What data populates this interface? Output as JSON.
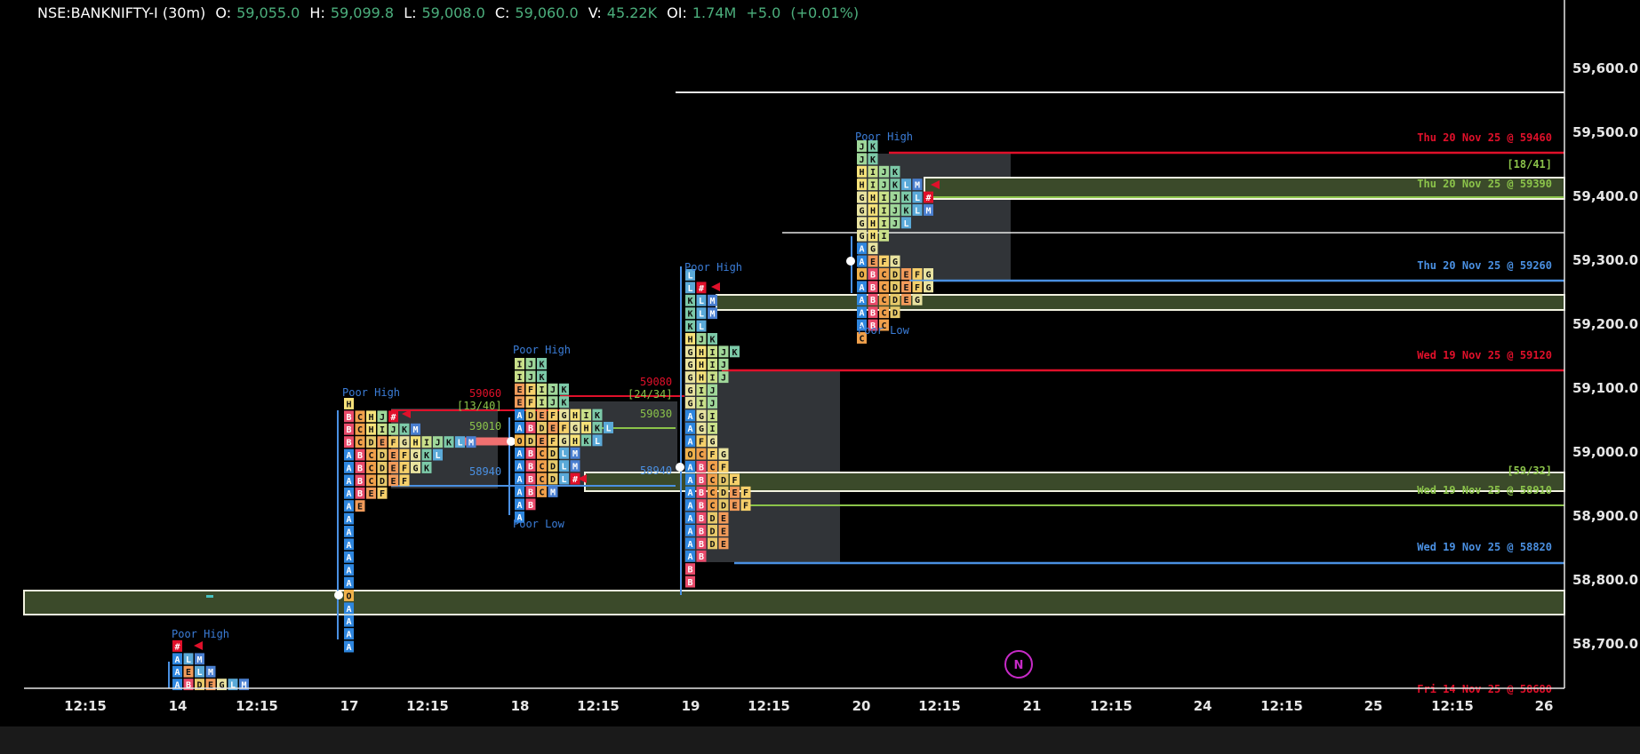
{
  "header": {
    "symbol": "NSE:BANKNIFTY-I (30m)",
    "open_label": "O:",
    "open": "59,055.0",
    "high_label": "H:",
    "high": "59,099.8",
    "low_label": "L:",
    "low": "59,008.0",
    "close_label": "C:",
    "close": "59,060.0",
    "volume_label": "V:",
    "volume": "45.22K",
    "oi_label": "OI:",
    "oi": "1.74M",
    "change": "+5.0",
    "change_pct": "(+0.01%)"
  },
  "colors": {
    "background": "#000000",
    "value_green": "#4caf7d",
    "poor_label": "#3b7dd8",
    "poc_red": "#e0102a",
    "vah_green": "#8bc34a",
    "val_blue": "#4a90e2",
    "band_fill": "#3b4a2a",
    "band_border": "#f2f2e0"
  },
  "price_axis": {
    "labels": [
      "59,600.0",
      "59,500.0",
      "59,400.0",
      "59,300.0",
      "59,200.0",
      "59,100.0",
      "59,000.0",
      "58,900.0",
      "58,800.0",
      "58,700.0"
    ]
  },
  "time_axis": {
    "labels": [
      "12:15",
      "14",
      "12:15",
      "17",
      "12:15",
      "18",
      "12:15",
      "19",
      "12:15",
      "20",
      "12:15",
      "21",
      "12:15",
      "24",
      "12:15",
      "25",
      "12:15",
      "26"
    ]
  },
  "annotations": {
    "poor_high": "Poor High",
    "poor_low": "Poor Low",
    "right_labels": [
      "Thu 20 Nov 25 @ 59460",
      "[18/41]",
      "Thu 20 Nov 25 @ 59390",
      "Thu 20 Nov 25 @ 59260",
      "Wed 19 Nov 25 @ 59120",
      "[59/32]",
      "Wed 19 Nov 25 @ 58910",
      "Wed 19 Nov 25 @ 58820",
      "Fri 14 Nov 25 @ 58680"
    ],
    "day17": {
      "poc": "59060",
      "ratio": "[13/40]",
      "vah": "59010",
      "val": "58940"
    },
    "day18": {
      "poc": "59080",
      "ratio": "[24/34]",
      "vah": "59030",
      "val": "58940"
    }
  },
  "news_badge": "N",
  "profiles": {
    "d14": [
      "#",
      "ALM",
      "AELM",
      "ABDEGLM"
    ],
    "d17": [
      "H",
      "BCHJ#",
      "BCHIJKM",
      "BCDEFGHIJKLM",
      "ABCDEFGKL",
      "ABCDEFGK",
      "ABCDEF",
      "ABEF",
      "AE",
      "A",
      "A",
      "A",
      "A",
      "A",
      "A",
      "O",
      "A",
      "A",
      "A",
      "A"
    ],
    "d18": [
      "IJK",
      "IJK",
      "EFIJK",
      "EFIJK",
      "ADEFGHIK",
      "ABDEFGHKL",
      "ODEFGHKL",
      "ABCDLM",
      "ABCDLM",
      "ABCDL#",
      "ABCM",
      "AB",
      "A"
    ],
    "d19": [
      "L",
      "L#",
      "KLM",
      "KLM",
      "KL",
      "HJK",
      "GHIJK",
      "GHIJ",
      "GHIJ",
      "GIJ",
      "GIJ",
      "AGI",
      "AGI",
      "AFG",
      "OCFG",
      "ABCF",
      "ABCDF",
      "ABCDEF",
      "ABCDEF",
      "ABDE",
      "ABDE",
      "ABDE",
      "AB",
      "B",
      "B"
    ],
    "d20": [
      "JK",
      "JK",
      "HIJK",
      "HIJKLM",
      "GHIJKL#",
      "GHIJKLM",
      "GHIJL",
      "GHI",
      "AG",
      "AEFG",
      "OBCDEFG",
      "ABCDEFG",
      "ABCDEG",
      "ABCD",
      "ABC",
      "C"
    ]
  }
}
